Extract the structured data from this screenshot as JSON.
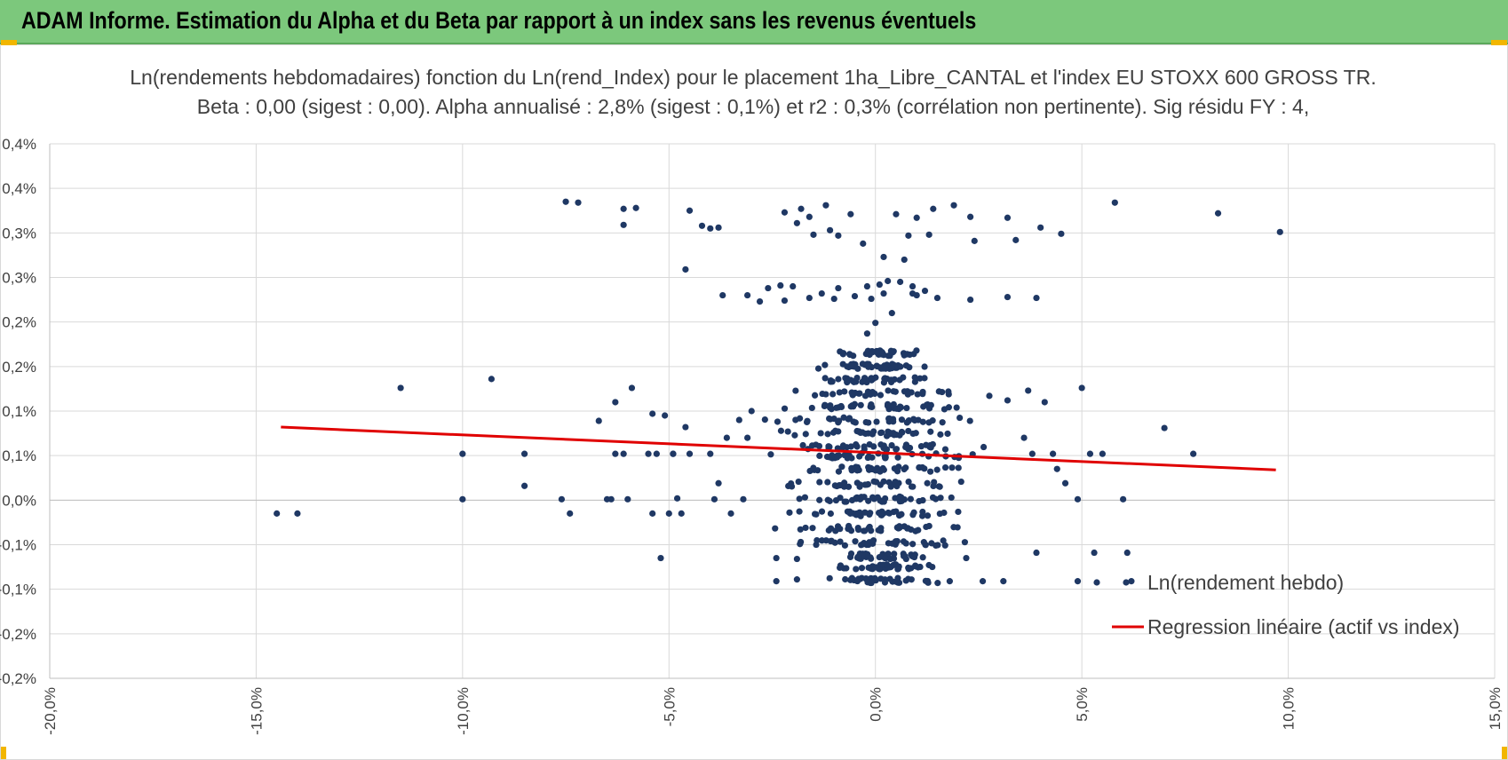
{
  "header": {
    "title": "ADAM Informe. Estimation du Alpha et du Beta par rapport à un index sans les revenus éventuels"
  },
  "colors": {
    "header_bg": "#7cc87c",
    "points": "#1f3864",
    "regression": "#e00000",
    "grid": "#d9d9d9",
    "accent_corners": "#f2b600"
  },
  "chart_data": {
    "type": "scatter",
    "title_line1": "Ln(rendements hebdomadaires) fonction du Ln(rend_Index) pour le placement 1ha_Libre_CANTAL et l'index EU STOXX 600 GROSS TR.",
    "title_line2": "Beta : 0,00 (sigest : 0,00).  Alpha annualisé : 2,8% (sigest : 0,1%) et r2 : 0,3% (corrélation non pertinente). Sig résidu FY : 4,",
    "xlabel": "",
    "ylabel": "",
    "xlim": [
      -20,
      15
    ],
    "ylim": [
      -0.2,
      0.4
    ],
    "x_tick_values": [
      -20,
      -15,
      -10,
      -5,
      0,
      5,
      10,
      15
    ],
    "x_tick_labels": [
      "-20,0%",
      "-15,0%",
      "-10,0%",
      "-5,0%",
      "0,0%",
      "5,0%",
      "10,0%",
      "15,0%"
    ],
    "y_tick_values": [
      0.4,
      0.35,
      0.3,
      0.25,
      0.2,
      0.15,
      0.1,
      0.05,
      0.0,
      -0.05,
      -0.1,
      -0.15,
      -0.2
    ],
    "y_tick_labels": [
      "0,4%",
      "0,4%",
      "0,3%",
      "0,3%",
      "0,2%",
      "0,2%",
      "0,1%",
      "0,1%",
      "0,0%",
      "-0,1%",
      "-0,1%",
      "-0,2%",
      "-0,2%"
    ],
    "grid": true,
    "legend_position": "bottom-right",
    "series": [
      {
        "name": "Ln(rendement hebdo)",
        "kind": "points",
        "color": "#1f3864",
        "points": [
          [
            -7.5,
            0.335
          ],
          [
            -7.2,
            0.334
          ],
          [
            -6.1,
            0.327
          ],
          [
            -5.8,
            0.328
          ],
          [
            -6.1,
            0.309
          ],
          [
            -4.5,
            0.325
          ],
          [
            -4.2,
            0.308
          ],
          [
            -4.0,
            0.305
          ],
          [
            -3.8,
            0.306
          ],
          [
            -4.6,
            0.259
          ],
          [
            -3.7,
            0.23
          ],
          [
            -2.2,
            0.323
          ],
          [
            -1.8,
            0.327
          ],
          [
            -1.2,
            0.331
          ],
          [
            -0.6,
            0.321
          ],
          [
            -1.6,
            0.318
          ],
          [
            -1.9,
            0.311
          ],
          [
            -1.5,
            0.298
          ],
          [
            -1.1,
            0.303
          ],
          [
            -0.9,
            0.297
          ],
          [
            -0.3,
            0.288
          ],
          [
            0.5,
            0.321
          ],
          [
            1.0,
            0.317
          ],
          [
            1.4,
            0.327
          ],
          [
            1.9,
            0.331
          ],
          [
            2.3,
            0.318
          ],
          [
            0.8,
            0.297
          ],
          [
            1.3,
            0.298
          ],
          [
            2.4,
            0.291
          ],
          [
            3.2,
            0.317
          ],
          [
            3.4,
            0.292
          ],
          [
            4.0,
            0.306
          ],
          [
            4.5,
            0.299
          ],
          [
            5.8,
            0.334
          ],
          [
            8.3,
            0.322
          ],
          [
            9.8,
            0.301
          ],
          [
            0.2,
            0.273
          ],
          [
            0.7,
            0.27
          ],
          [
            -3.1,
            0.23
          ],
          [
            -2.8,
            0.223
          ],
          [
            -2.6,
            0.238
          ],
          [
            -2.0,
            0.24
          ],
          [
            -1.6,
            0.227
          ],
          [
            -1.3,
            0.232
          ],
          [
            -0.9,
            0.238
          ],
          [
            -0.5,
            0.229
          ],
          [
            -0.2,
            0.24
          ],
          [
            0.1,
            0.242
          ],
          [
            0.3,
            0.246
          ],
          [
            0.6,
            0.245
          ],
          [
            0.9,
            0.24
          ],
          [
            1.2,
            0.235
          ],
          [
            1.5,
            0.227
          ],
          [
            1.0,
            0.23
          ],
          [
            0.2,
            0.232
          ],
          [
            -0.1,
            0.226
          ],
          [
            -1.0,
            0.226
          ],
          [
            -2.3,
            0.241
          ],
          [
            -2.2,
            0.224
          ],
          [
            2.3,
            0.225
          ],
          [
            3.2,
            0.228
          ],
          [
            3.9,
            0.227
          ],
          [
            -0.2,
            0.187
          ],
          [
            -0.1,
            0.137
          ],
          [
            0.0,
            0.199
          ],
          [
            0.4,
            0.21
          ],
          [
            0.9,
            0.232
          ],
          [
            -11.5,
            0.126
          ],
          [
            -9.3,
            0.136
          ],
          [
            -10.0,
            0.052
          ],
          [
            -10.0,
            0.001
          ],
          [
            -8.5,
            0.052
          ],
          [
            -8.5,
            0.016
          ],
          [
            -14.5,
            -0.015
          ],
          [
            -14.0,
            -0.015
          ],
          [
            -7.4,
            -0.015
          ],
          [
            -7.6,
            0.001
          ],
          [
            -6.4,
            0.001
          ],
          [
            -6.5,
            0.001
          ],
          [
            -6.3,
            0.052
          ],
          [
            -6.1,
            0.052
          ],
          [
            -6.7,
            0.089
          ],
          [
            -6.3,
            0.11
          ],
          [
            -5.9,
            0.126
          ],
          [
            -5.4,
            0.097
          ],
          [
            -5.1,
            0.095
          ],
          [
            -5.3,
            0.052
          ],
          [
            -5.5,
            0.052
          ],
          [
            -4.9,
            0.052
          ],
          [
            -4.5,
            0.052
          ],
          [
            -4.8,
            0.002
          ],
          [
            -6.0,
            0.001
          ],
          [
            -5.4,
            -0.015
          ],
          [
            -5.0,
            -0.015
          ],
          [
            -4.7,
            -0.015
          ],
          [
            -5.2,
            -0.065
          ],
          [
            -4.0,
            0.052
          ],
          [
            -3.6,
            0.07
          ],
          [
            -3.8,
            0.019
          ],
          [
            -3.9,
            0.001
          ],
          [
            -3.5,
            -0.015
          ],
          [
            -3.2,
            0.001
          ],
          [
            -4.9,
            0.052
          ],
          [
            -4.6,
            0.082
          ],
          [
            -3.3,
            0.09
          ],
          [
            -3.1,
            0.07
          ],
          [
            -3.0,
            0.1
          ],
          [
            7.0,
            0.081
          ],
          [
            7.7,
            0.052
          ],
          [
            6.0,
            0.001
          ],
          [
            5.5,
            0.052
          ],
          [
            5.2,
            0.052
          ],
          [
            5.0,
            0.126
          ],
          [
            5.3,
            -0.059
          ],
          [
            6.1,
            -0.059
          ],
          [
            4.9,
            -0.091
          ],
          [
            6.2,
            -0.091
          ],
          [
            3.9,
            -0.059
          ],
          [
            3.1,
            -0.091
          ],
          [
            4.9,
            0.001
          ],
          [
            4.6,
            0.019
          ],
          [
            4.4,
            0.035
          ],
          [
            4.3,
            0.052
          ],
          [
            3.8,
            0.052
          ],
          [
            3.6,
            0.07
          ],
          [
            4.1,
            0.11
          ],
          [
            3.7,
            0.123
          ],
          [
            3.2,
            0.112
          ],
          [
            2.2,
            -0.065
          ],
          [
            2.6,
            -0.091
          ],
          [
            1.8,
            -0.091
          ],
          [
            -2.4,
            -0.065
          ],
          [
            -2.4,
            -0.091
          ],
          [
            -1.9,
            -0.089
          ],
          [
            -1.9,
            -0.066
          ]
        ],
        "dense_cluster": {
          "x_range": [
            -3.0,
            3.0
          ],
          "rows": [
            0.165,
            0.15,
            0.135,
            0.12,
            0.105,
            0.09,
            0.075,
            0.06,
            0.05,
            0.035,
            0.018,
            0.001,
            -0.015,
            -0.032,
            -0.048,
            -0.063,
            -0.075,
            -0.09
          ],
          "count_per_row": 38
        }
      },
      {
        "name": "Regression linéaire (actif vs index)",
        "kind": "line",
        "color": "#e00000",
        "x": [
          -14.4,
          9.7
        ],
        "y": [
          0.082,
          0.034
        ]
      }
    ]
  }
}
